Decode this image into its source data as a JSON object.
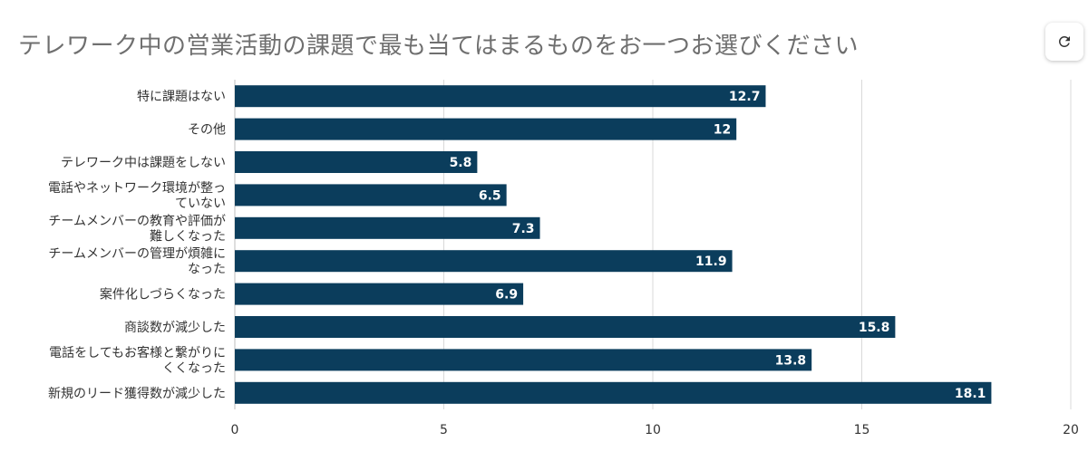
{
  "title": "テレワーク中の営業活動の課題で最も当てはまるものをお一つお選びください",
  "refresh_icon": "refresh-icon",
  "chart_data": {
    "type": "bar",
    "orientation": "horizontal",
    "title": "テレワーク中の営業活動の課題で最も当てはまるものをお一つお選びください",
    "categories": [
      [
        "特に課題はない"
      ],
      [
        "その他"
      ],
      [
        "テレワーク中は課題をしない"
      ],
      [
        "電話やネットワーク環境が整っ",
        "ていない"
      ],
      [
        "チームメンバーの教育や評価が",
        "難しくなった"
      ],
      [
        "チームメンバーの管理が煩雑に",
        "なった"
      ],
      [
        "案件化しづらくなった"
      ],
      [
        "商談数が減少した"
      ],
      [
        "電話をしてもお客様と繋がりに",
        "くくなった"
      ],
      [
        "新規のリード獲得数が減少した"
      ]
    ],
    "values": [
      12.7,
      12,
      5.8,
      6.5,
      7.3,
      11.9,
      6.9,
      15.8,
      13.8,
      18.1
    ],
    "value_labels": [
      "12.7",
      "12",
      "5.8",
      "6.5",
      "7.3",
      "11.9",
      "6.9",
      "15.8",
      "13.8",
      "18.1"
    ],
    "xlim": [
      0,
      20
    ],
    "xticks": [
      0,
      5,
      10,
      15,
      20
    ],
    "tick_labels": [
      "0",
      "5",
      "10",
      "15",
      "20"
    ],
    "grid": true,
    "bar_color": "#0b3d5c",
    "grid_color": "#d9d9d9"
  }
}
